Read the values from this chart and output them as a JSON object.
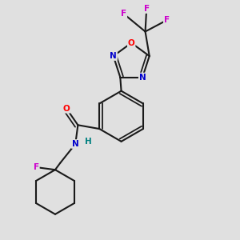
{
  "background_color": "#e0e0e0",
  "bond_color": "#1a1a1a",
  "atom_colors": {
    "O": "#ff0000",
    "N": "#0000cc",
    "F": "#cc00cc",
    "H": "#008080",
    "C": "#1a1a1a"
  }
}
